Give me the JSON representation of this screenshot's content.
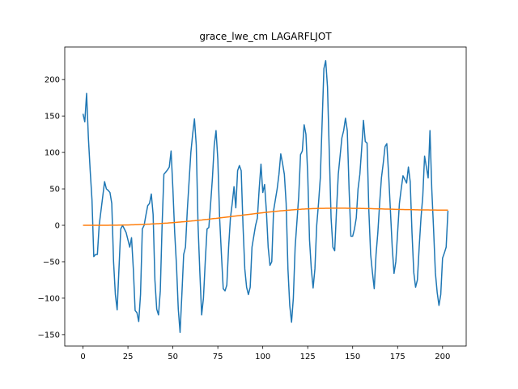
{
  "chart_data": {
    "type": "line",
    "title": "grace_lwe_cm LAGARFLJOT",
    "xlim": [
      -10.15,
      213.15
    ],
    "xticks": [
      0,
      25,
      50,
      75,
      100,
      125,
      150,
      175,
      200
    ],
    "ylim": [
      -165.7,
      244.7
    ],
    "yticks": [
      {
        "value": -150,
        "label": "−150"
      },
      {
        "value": -100,
        "label": "−100"
      },
      {
        "value": -50,
        "label": "−50"
      },
      0,
      50,
      100,
      150,
      200
    ],
    "series": [
      {
        "color": "#1f77b4",
        "values": [
          153,
          142,
          181,
          120,
          75,
          35,
          -43,
          -40,
          -40,
          0,
          20,
          40,
          60,
          50,
          48,
          45,
          30,
          -50,
          -95,
          -116,
          -60,
          -5,
          0,
          -5,
          -10,
          -20,
          -30,
          -17,
          -60,
          -117,
          -120,
          -132,
          -95,
          -5,
          0,
          14,
          27,
          30,
          43,
          15,
          -75,
          -115,
          -123,
          -90,
          0,
          70,
          73,
          76,
          80,
          102,
          50,
          -10,
          -55,
          -115,
          -147,
          -95,
          -40,
          -30,
          20,
          60,
          100,
          125,
          146,
          110,
          0,
          -65,
          -123,
          -100,
          -50,
          -5,
          -3,
          30,
          65,
          110,
          130,
          90,
          10,
          -40,
          -87,
          -90,
          -82,
          -30,
          10,
          30,
          53,
          24,
          75,
          82,
          75,
          0,
          -60,
          -85,
          -95,
          -85,
          -30,
          -15,
          0,
          10,
          50,
          84,
          45,
          56,
          20,
          -30,
          -55,
          -50,
          20,
          35,
          50,
          70,
          98,
          85,
          70,
          30,
          -60,
          -110,
          -133,
          -100,
          -30,
          5,
          40,
          97,
          102,
          138,
          125,
          70,
          -20,
          -60,
          -86,
          -60,
          0,
          30,
          65,
          140,
          215,
          226,
          190,
          100,
          10,
          -30,
          -35,
          20,
          70,
          95,
          120,
          130,
          147,
          130,
          50,
          -15,
          -15,
          -5,
          10,
          50,
          70,
          105,
          144,
          115,
          113,
          20,
          -40,
          -65,
          -87,
          -40,
          -10,
          30,
          65,
          85,
          108,
          112,
          70,
          20,
          -30,
          -66,
          -50,
          -10,
          30,
          50,
          68,
          63,
          58,
          80,
          60,
          -10,
          -65,
          -85,
          -75,
          -30,
          10,
          40,
          95,
          80,
          65,
          130,
          50,
          -5,
          -65,
          -92,
          -110,
          -95,
          -45,
          -38,
          -30,
          20
        ]
      },
      {
        "color": "#ff7f0e",
        "values": [
          0,
          0,
          0,
          0,
          0,
          0,
          0,
          0,
          0,
          0,
          0,
          0,
          0,
          0,
          0,
          0.1,
          0.1,
          0.1,
          0.2,
          0.2,
          0.3,
          0.3,
          0.4,
          0.4,
          0.5,
          0.5,
          0.6,
          0.7,
          0.7,
          0.8,
          0.9,
          1,
          1.1,
          1.2,
          1.3,
          1.4,
          1.5,
          1.6,
          1.8,
          1.9,
          2,
          2.2,
          2.3,
          2.5,
          2.6,
          2.8,
          3,
          3.1,
          3.3,
          3.5,
          3.7,
          3.9,
          4.1,
          4.3,
          4.5,
          4.7,
          4.9,
          5.1,
          5.4,
          5.6,
          5.8,
          6.1,
          6.3,
          6.6,
          6.8,
          7.1,
          7.3,
          7.6,
          7.9,
          8.1,
          8.4,
          8.7,
          9,
          9.3,
          9.5,
          9.8,
          10.1,
          10.4,
          10.7,
          11,
          11.3,
          11.6,
          11.9,
          12.2,
          12.5,
          12.8,
          13.1,
          13.4,
          13.7,
          14,
          14.3,
          14.6,
          14.9,
          15.2,
          15.5,
          15.8,
          16.1,
          16.4,
          16.7,
          17,
          17.3,
          17.6,
          17.8,
          18.1,
          18.4,
          18.6,
          18.9,
          19.1,
          19.4,
          19.6,
          19.9,
          20.1,
          20.3,
          20.5,
          20.7,
          20.9,
          21.1,
          21.3,
          21.5,
          21.7,
          21.9,
          22,
          22.2,
          22.3,
          22.5,
          22.6,
          22.7,
          22.8,
          22.9,
          23,
          23.1,
          23.2,
          23.2,
          23.3,
          23.3,
          23.4,
          23.4,
          23.4,
          23.5,
          23.5,
          23.5,
          23.5,
          23.5,
          23.5,
          23.5,
          23.5,
          23.5,
          23.4,
          23.4,
          23.4,
          23.3,
          23.3,
          23.3,
          23.2,
          23.2,
          23.1,
          23.1,
          23,
          23,
          22.9,
          22.9,
          22.8,
          22.7,
          22.7,
          22.6,
          22.5,
          22.5,
          22.4,
          22.3,
          22.3,
          22.2,
          22.1,
          22.1,
          22,
          21.9,
          21.9,
          21.8,
          21.7,
          21.7,
          21.6,
          21.6,
          21.5,
          21.5,
          21.4,
          21.4,
          21.3,
          21.3,
          21.2,
          21.2,
          21.2,
          21.1,
          21.1,
          21.1,
          21,
          21,
          21,
          21,
          20.9,
          20.9,
          20.9,
          20.9,
          20.9,
          20.9,
          20.9
        ]
      }
    ]
  }
}
